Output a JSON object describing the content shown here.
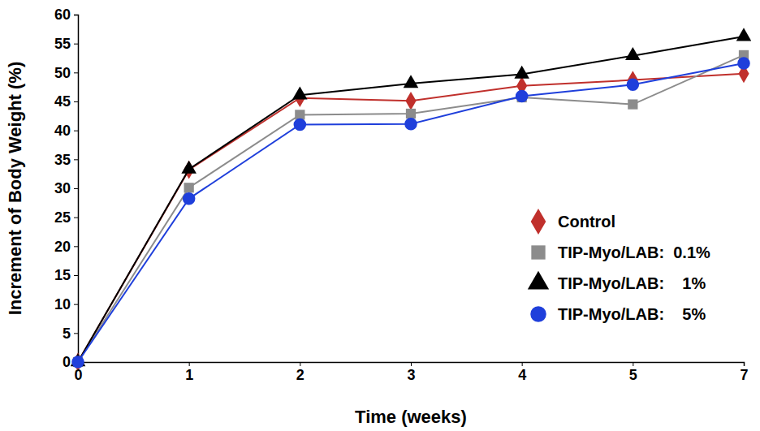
{
  "chart_data": {
    "type": "line",
    "x_label": "Time (weeks)",
    "y_label": "Increment of Body Weight (%)",
    "categories": [
      "0",
      "1",
      "2",
      "3",
      "4",
      "5",
      "7"
    ],
    "ylim": [
      0,
      60
    ],
    "yticks": [
      0,
      5,
      10,
      15,
      20,
      25,
      30,
      35,
      40,
      45,
      50,
      55,
      60
    ],
    "grid": false,
    "legend": "lower right",
    "series": [
      {
        "name": "Control",
        "color": "#c0302c",
        "marker": "diamond",
        "values": [
          0,
          33.2,
          45.6,
          45.1,
          47.7,
          48.7,
          49.8
        ]
      },
      {
        "name": "TIP-Myo/LAB:  0.1%",
        "color": "#8c8c8c",
        "marker": "square",
        "values": [
          0,
          30.1,
          42.7,
          42.9,
          45.7,
          44.5,
          53.0
        ]
      },
      {
        "name": "TIP-Myo/LAB:    1%",
        "color": "#000000",
        "marker": "triangle",
        "values": [
          0,
          33.3,
          46.1,
          48.1,
          49.7,
          52.9,
          56.2
        ]
      },
      {
        "name": "TIP-Myo/LAB:    5%",
        "color": "#1f3fdb",
        "marker": "circle",
        "values": [
          0,
          28.2,
          41.0,
          41.1,
          45.9,
          47.9,
          51.6
        ]
      }
    ]
  }
}
